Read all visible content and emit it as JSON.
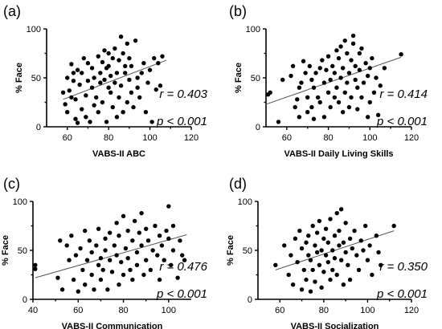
{
  "chart_data": [
    {
      "type": "scatter",
      "panel_label": "(a)",
      "xlabel": "VABS-II ABC",
      "ylabel": "% Face",
      "xlim": [
        50,
        120
      ],
      "ylim": [
        0,
        100
      ],
      "xticks": [
        60,
        80,
        100,
        120
      ],
      "yticks": [
        0,
        50,
        100
      ],
      "stats": [
        "r = 0.403",
        "p < 0.001"
      ],
      "fit_line": {
        "x": [
          58,
          108
        ],
        "y": [
          28,
          68
        ]
      },
      "x": [
        58,
        59,
        60,
        60,
        61,
        62,
        62,
        63,
        63,
        64,
        64,
        65,
        65,
        66,
        67,
        67,
        68,
        69,
        69,
        70,
        70,
        71,
        72,
        72,
        73,
        73,
        74,
        75,
        75,
        76,
        76,
        77,
        77,
        78,
        78,
        79,
        79,
        80,
        80,
        80,
        81,
        81,
        82,
        82,
        83,
        83,
        84,
        84,
        85,
        85,
        86,
        86,
        87,
        87,
        88,
        88,
        89,
        89,
        90,
        90,
        91,
        91,
        92,
        93,
        94,
        94,
        95,
        96,
        97,
        98,
        99,
        100,
        101,
        102,
        103,
        104,
        105,
        106
      ],
      "y": [
        35,
        23,
        50,
        15,
        37,
        64,
        30,
        47,
        55,
        8,
        28,
        58,
        4,
        43,
        18,
        55,
        70,
        32,
        10,
        47,
        65,
        5,
        40,
        60,
        22,
        50,
        30,
        72,
        15,
        55,
        45,
        66,
        25,
        78,
        48,
        5,
        60,
        40,
        75,
        62,
        35,
        52,
        20,
        70,
        45,
        80,
        10,
        55,
        68,
        30,
        92,
        42,
        75,
        15,
        55,
        62,
        25,
        85,
        48,
        70,
        35,
        62,
        20,
        88,
        50,
        40,
        30,
        55,
        65,
        15,
        45,
        58,
        5,
        70,
        38,
        65,
        42,
        72
      ]
    },
    {
      "type": "scatter",
      "panel_label": "(b)",
      "xlabel": "VABS-II Daily Living Skills",
      "ylabel": "% Face",
      "xlim": [
        50,
        120
      ],
      "ylim": [
        0,
        100
      ],
      "xticks": [
        60,
        80,
        100,
        120
      ],
      "yticks": [
        0,
        50,
        100
      ],
      "stats": [
        "r = 0.414",
        "p < 0.001"
      ],
      "fit_line": {
        "x": [
          50,
          115
        ],
        "y": [
          23,
          71
        ]
      },
      "x": [
        51,
        52,
        56,
        58,
        62,
        63,
        64,
        65,
        66,
        66,
        67,
        68,
        69,
        70,
        70,
        71,
        72,
        72,
        73,
        73,
        74,
        75,
        76,
        76,
        77,
        78,
        78,
        79,
        80,
        80,
        81,
        81,
        82,
        83,
        83,
        84,
        84,
        85,
        85,
        86,
        86,
        87,
        87,
        88,
        88,
        89,
        89,
        90,
        90,
        91,
        91,
        92,
        92,
        93,
        93,
        94,
        94,
        95,
        95,
        96,
        96,
        97,
        98,
        99,
        99,
        100,
        100,
        101,
        102,
        103,
        104,
        105,
        107,
        115
      ],
      "y": [
        33,
        35,
        5,
        48,
        52,
        62,
        20,
        28,
        40,
        10,
        45,
        67,
        55,
        15,
        30,
        62,
        20,
        48,
        8,
        40,
        55,
        30,
        60,
        25,
        68,
        10,
        45,
        58,
        35,
        72,
        48,
        20,
        62,
        30,
        55,
        40,
        78,
        70,
        25,
        50,
        82,
        15,
        60,
        35,
        88,
        45,
        75,
        55,
        20,
        68,
        30,
        93,
        85,
        48,
        62,
        18,
        40,
        75,
        58,
        30,
        80,
        45,
        65,
        52,
        10,
        60,
        25,
        70,
        35,
        50,
        12,
        42,
        60,
        74
      ]
    },
    {
      "type": "scatter",
      "panel_label": "(c)",
      "xlabel": "VABS-II Communication",
      "ylabel": "% Face",
      "xlim": [
        40,
        110
      ],
      "ylim": [
        0,
        100
      ],
      "xticks": [
        40,
        60,
        80,
        100
      ],
      "yticks": [
        0,
        50,
        100
      ],
      "stats": [
        "r = 0.476",
        "p < 0.001"
      ],
      "fit_line": {
        "x": [
          41,
          108
        ],
        "y": [
          22,
          66
        ]
      },
      "x": [
        41,
        41,
        51,
        52,
        53,
        55,
        56,
        57,
        58,
        59,
        60,
        61,
        62,
        63,
        63,
        64,
        65,
        66,
        66,
        67,
        68,
        69,
        69,
        70,
        70,
        71,
        72,
        72,
        73,
        74,
        74,
        75,
        76,
        77,
        77,
        78,
        78,
        79,
        80,
        80,
        81,
        82,
        82,
        83,
        84,
        84,
        85,
        86,
        86,
        87,
        88,
        88,
        89,
        90,
        90,
        91,
        92,
        93,
        94,
        95,
        96,
        96,
        97,
        98,
        99,
        100,
        100,
        101,
        102,
        102,
        104,
        105,
        106,
        107
      ],
      "y": [
        31,
        35,
        22,
        60,
        10,
        55,
        40,
        65,
        20,
        45,
        8,
        52,
        30,
        70,
        15,
        40,
        60,
        25,
        48,
        10,
        55,
        35,
        72,
        20,
        42,
        30,
        62,
        50,
        10,
        40,
        68,
        28,
        55,
        78,
        45,
        15,
        65,
        38,
        85,
        25,
        52,
        42,
        70,
        30,
        60,
        20,
        80,
        48,
        35,
        68,
        55,
        88,
        25,
        72,
        40,
        60,
        30,
        50,
        75,
        45,
        65,
        20,
        55,
        40,
        70,
        62,
        95,
        35,
        75,
        50,
        22,
        60,
        45,
        40
      ]
    },
    {
      "type": "scatter",
      "panel_label": "(d)",
      "xlabel": "VABS-II Socialization",
      "ylabel": "% Face",
      "xlim": [
        50,
        120
      ],
      "ylim": [
        0,
        100
      ],
      "xticks": [
        60,
        80,
        100,
        120
      ],
      "yticks": [
        0,
        50,
        100
      ],
      "stats": [
        "r = 0.350",
        "p < 0.001"
      ],
      "fit_line": {
        "x": [
          58,
          112
        ],
        "y": [
          30,
          70
        ]
      },
      "x": [
        58,
        62,
        64,
        65,
        66,
        67,
        68,
        69,
        70,
        70,
        71,
        72,
        72,
        73,
        73,
        74,
        74,
        75,
        75,
        76,
        76,
        77,
        77,
        78,
        78,
        79,
        79,
        80,
        80,
        81,
        81,
        82,
        82,
        83,
        83,
        84,
        84,
        85,
        85,
        86,
        86,
        87,
        87,
        88,
        88,
        89,
        89,
        90,
        90,
        91,
        92,
        92,
        93,
        94,
        95,
        96,
        97,
        98,
        99,
        100,
        101,
        102,
        104,
        105,
        106,
        112
      ],
      "y": [
        35,
        55,
        25,
        45,
        15,
        62,
        38,
        70,
        10,
        52,
        30,
        58,
        20,
        45,
        65,
        8,
        40,
        75,
        30,
        55,
        18,
        48,
        68,
        35,
        80,
        12,
        50,
        62,
        28,
        45,
        72,
        38,
        58,
        20,
        82,
        50,
        30,
        65,
        42,
        88,
        25,
        55,
        70,
        40,
        92,
        15,
        58,
        48,
        78,
        35,
        62,
        20,
        52,
        70,
        45,
        30,
        60,
        50,
        75,
        40,
        55,
        25,
        65,
        48,
        35,
        75
      ]
    }
  ]
}
